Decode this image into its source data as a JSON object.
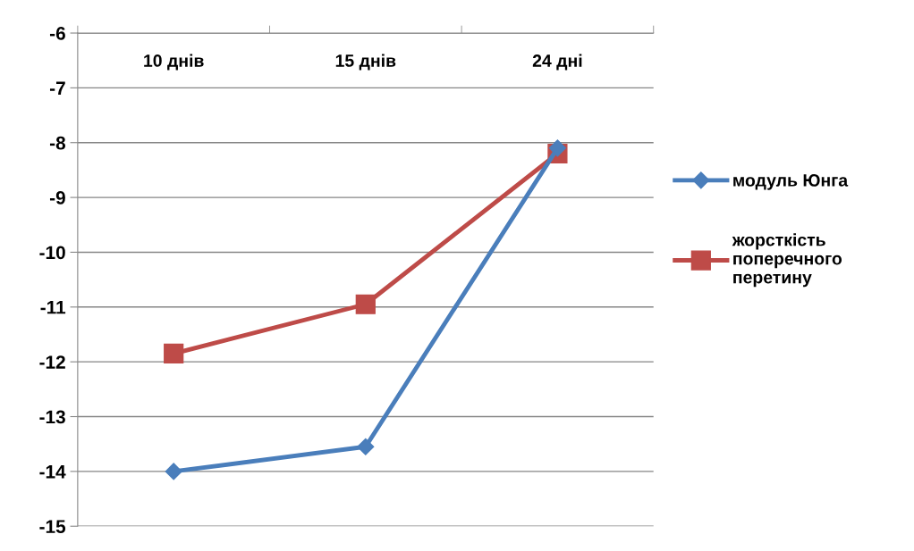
{
  "chart_data": {
    "type": "line",
    "categories": [
      "10 днів",
      "15 днів",
      "24 дні"
    ],
    "series": [
      {
        "name": "модуль Юнга",
        "color": "#4a7ebb",
        "marker": "diamond",
        "values": [
          -14.0,
          -13.55,
          -8.1
        ]
      },
      {
        "name": "жорсткість поперечного перетину",
        "color": "#be4b48",
        "marker": "square",
        "values": [
          -11.85,
          -10.95,
          -8.2
        ]
      }
    ],
    "ylim": [
      -15,
      -6
    ],
    "yticks": [
      -15,
      -14,
      -13,
      -12,
      -11,
      -10,
      -9,
      -8,
      -7,
      -6
    ],
    "grid": "y",
    "legend": "right"
  }
}
